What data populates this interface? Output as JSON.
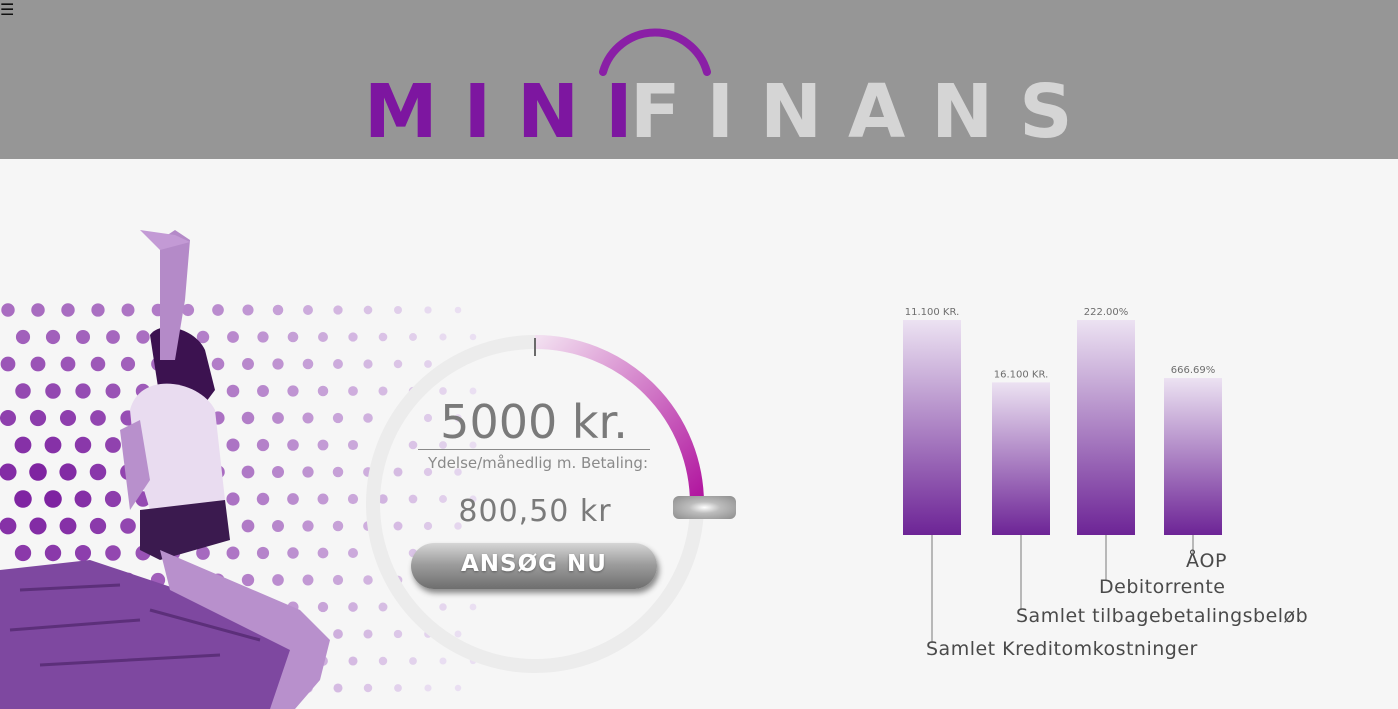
{
  "header": {
    "menu_icon": "hamburger-menu-icon",
    "logo_mini": "MINI",
    "logo_finans": "FINANS",
    "colors": {
      "background": "#969696",
      "mini": "#7d16a0",
      "finans": "#d5d5d5"
    }
  },
  "calculator": {
    "amount": "5000 kr.",
    "payment_label": "Ydelse/månedlig m. Betaling:",
    "payment_value": "800,50 kr",
    "apply_label": "ANSØG NU",
    "slider_fraction": 0.25,
    "accent_color": "#b0139e"
  },
  "chart_data": {
    "type": "bar",
    "categories": [
      "Samlet Kreditomkostninger",
      "Samlet tilbagebetalingsbeløb",
      "Debitorrente",
      "ÅOP"
    ],
    "data_labels": [
      "11.100 KR.",
      "16.100 KR.",
      "222.00%",
      "666.69%"
    ],
    "values": [
      100,
      71,
      100,
      73
    ],
    "ylim": [
      0,
      100
    ],
    "grid": false,
    "colors": {
      "top": "#ece2f2",
      "bottom": "#6d2496"
    }
  }
}
